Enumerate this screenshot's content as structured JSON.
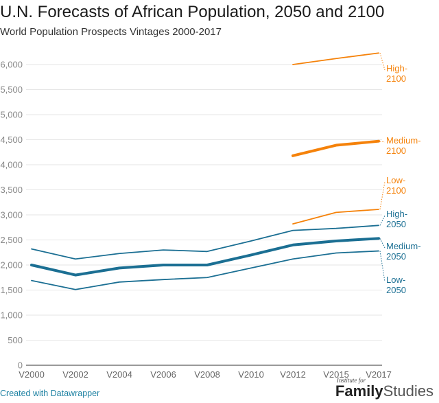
{
  "header": {
    "title": "U.N. Forecasts of African Population, 2050 and 2100",
    "subtitle": "World Population Prospects Vintages 2000-2017"
  },
  "footer": {
    "credit": "Created with Datawrapper",
    "logo_top": "Institute for",
    "logo_bold": "Family",
    "logo_light": "Studies"
  },
  "colors": {
    "blue": "#1b6f93",
    "orange": "#f5820a",
    "grid": "#e6e6e6",
    "axis": "#333333",
    "tick_text": "#888888"
  },
  "chart_data": {
    "type": "line",
    "title": "U.N. Forecasts of African Population, 2050 and 2100",
    "subtitle": "World Population Prospects Vintages 2000-2017",
    "xlabel": "",
    "ylabel": "",
    "categories": [
      "V2000",
      "V2002",
      "V2004",
      "V2006",
      "V2008",
      "V2010",
      "V2012",
      "V2015",
      "V2017"
    ],
    "ylim": [
      0,
      6000
    ],
    "yticks": [
      0,
      500,
      1000,
      1500,
      2000,
      2500,
      3000,
      3500,
      4000,
      4500,
      5000,
      5500,
      6000
    ],
    "ytick_labels": [
      "0",
      "500",
      "1,000",
      "1,500",
      "2,000",
      "2,500",
      "3,000",
      "3,500",
      "4,000",
      "4,500",
      "5,000",
      "5,500",
      "6,000"
    ],
    "grid": true,
    "legend": "direct labels at right end of lines",
    "series": [
      {
        "name": "High-2100",
        "label_lines": [
          "High-",
          "2100"
        ],
        "color": "#f5820a",
        "weight": "normal",
        "values": [
          null,
          null,
          null,
          null,
          null,
          null,
          6000,
          6120,
          6230
        ]
      },
      {
        "name": "Medium-2100",
        "label_lines": [
          "Medium-",
          "2100"
        ],
        "color": "#f5820a",
        "weight": "bold",
        "values": [
          null,
          null,
          null,
          null,
          null,
          null,
          4180,
          4390,
          4470
        ]
      },
      {
        "name": "Low-2100",
        "label_lines": [
          "Low-",
          "2100"
        ],
        "color": "#f5820a",
        "weight": "normal",
        "values": [
          null,
          null,
          null,
          null,
          null,
          null,
          2820,
          3050,
          3110
        ]
      },
      {
        "name": "High-2050",
        "label_lines": [
          "High-",
          "2050"
        ],
        "color": "#1b6f93",
        "weight": "normal",
        "values": [
          2320,
          2120,
          2230,
          2300,
          2270,
          2480,
          2690,
          2730,
          2790
        ]
      },
      {
        "name": "Medium-2050",
        "label_lines": [
          "Medium-",
          "2050"
        ],
        "color": "#1b6f93",
        "weight": "bold",
        "values": [
          2000,
          1800,
          1940,
          2000,
          2000,
          2200,
          2400,
          2480,
          2530
        ]
      },
      {
        "name": "Low-2050",
        "label_lines": [
          "Low-",
          "2050"
        ],
        "color": "#1b6f93",
        "weight": "normal",
        "values": [
          1690,
          1510,
          1660,
          1710,
          1750,
          1940,
          2120,
          2240,
          2280
        ]
      }
    ]
  }
}
